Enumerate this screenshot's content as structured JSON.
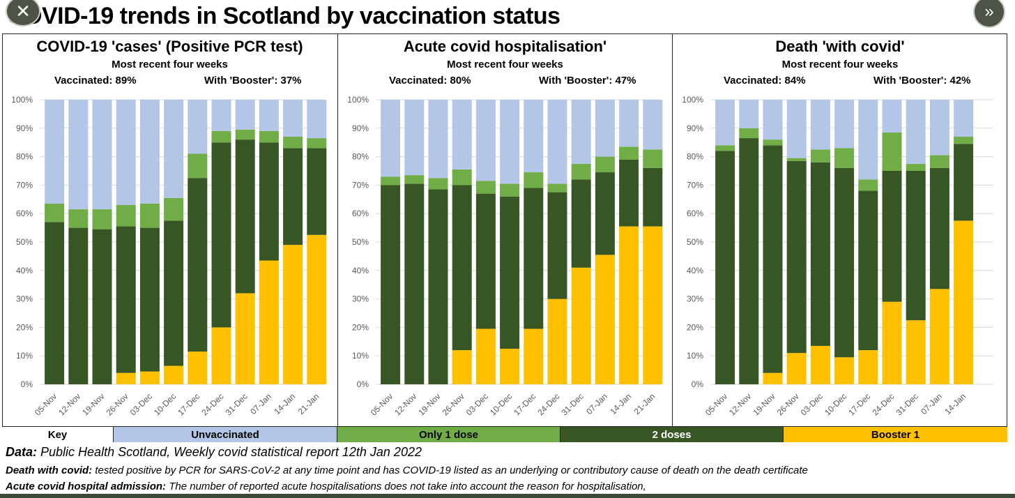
{
  "header": {
    "title": "COVID-19 trends in Scotland by vaccination status"
  },
  "controls": {
    "close_glyph": "✕",
    "next_glyph": "»"
  },
  "colors": {
    "unvaccinated": "#b4c6e7",
    "one_dose": "#70ad47",
    "two_doses": "#375623",
    "booster": "#ffc000",
    "grid": "#d9d9d9"
  },
  "key": {
    "label": "Key",
    "unvaccinated": "Unvaccinated",
    "one_dose": "Only 1 dose",
    "two_doses": "2 doses",
    "booster": "Booster 1"
  },
  "notes": {
    "data_label": "Data:",
    "data_text": "  Public Health Scotland, Weekly covid statistical report 12th Jan 2022",
    "death_label": "Death with covid:",
    "death_text": "   tested positive by PCR for SARS-CoV-2 at any time point and has COVID-19 listed as an underlying or contributory cause of death on the death certificate",
    "hosp_label": "Acute covid hospital admission:",
    "hosp_text": "  The number of reported acute hospitalisations does not take into account the reason for hospitalisation,"
  },
  "chart_data": [
    {
      "type": "bar",
      "stacked": true,
      "title": "COVID-19 'cases' (Positive PCR test)",
      "subtitle": "Most recent four weeks",
      "vaccinated_text": "Vaccinated:  89%",
      "booster_text": "With 'Booster':  37%",
      "ylim": [
        0,
        100
      ],
      "yticks": [
        "0%",
        "10%",
        "20%",
        "30%",
        "40%",
        "50%",
        "60%",
        "70%",
        "80%",
        "90%",
        "100%"
      ],
      "categories": [
        "05-Nov",
        "12-Nov",
        "19-Nov",
        "26-Nov",
        "03-Dec",
        "10-Dec",
        "17-Dec",
        "24-Dec",
        "31-Dec",
        "07-Jan",
        "14-Jan",
        "21-Jan"
      ],
      "series": [
        {
          "name": "Booster 1",
          "values": [
            0,
            0,
            0,
            4,
            4.5,
            6.5,
            11.5,
            20,
            32,
            43.5,
            49,
            52.5
          ]
        },
        {
          "name": "2 doses",
          "values": [
            57,
            55,
            54.5,
            51.5,
            50.5,
            51,
            61,
            65,
            54,
            41.5,
            34,
            30.5
          ]
        },
        {
          "name": "Only 1 dose",
          "values": [
            6.5,
            6.5,
            7,
            7.5,
            8.5,
            8,
            8.5,
            4,
            3.5,
            4,
            4,
            3.5
          ]
        },
        {
          "name": "Unvaccinated",
          "values": [
            36.5,
            38.5,
            38.5,
            37,
            36.5,
            34.5,
            19,
            11,
            10.5,
            11,
            13,
            13.5
          ]
        }
      ]
    },
    {
      "type": "bar",
      "stacked": true,
      "title": "Acute covid hospitalisation'",
      "subtitle": "Most recent four weeks",
      "vaccinated_text": "Vaccinated:  80%",
      "booster_text": "With 'Booster':  47%",
      "ylim": [
        0,
        100
      ],
      "yticks": [
        "0%",
        "10%",
        "20%",
        "30%",
        "40%",
        "50%",
        "60%",
        "70%",
        "80%",
        "90%",
        "100%"
      ],
      "categories": [
        "05-Nov",
        "12-Nov",
        "19-Nov",
        "26-Nov",
        "03-Dec",
        "10-Dec",
        "17-Dec",
        "24-Dec",
        "31-Dec",
        "07-Jan",
        "14-Jan",
        "21-Jan"
      ],
      "series": [
        {
          "name": "Booster 1",
          "values": [
            0,
            0,
            0,
            12,
            19.5,
            12.5,
            19.5,
            30,
            41,
            45.5,
            55.5,
            55.5
          ]
        },
        {
          "name": "2 doses",
          "values": [
            70,
            70.5,
            68.5,
            58,
            47.5,
            53.5,
            49.5,
            37.5,
            31,
            29,
            23.5,
            20.5
          ]
        },
        {
          "name": "Only 1 dose",
          "values": [
            3,
            3,
            4,
            5.5,
            4.5,
            4.5,
            5.5,
            3,
            5.5,
            5.5,
            4.5,
            6.5
          ]
        },
        {
          "name": "Unvaccinated",
          "values": [
            27,
            26.5,
            27.5,
            24.5,
            28.5,
            29.5,
            25.5,
            29.5,
            22.5,
            20,
            16.5,
            17.5
          ]
        }
      ]
    },
    {
      "type": "bar",
      "stacked": true,
      "title": "Death 'with covid'",
      "subtitle": "Most recent four weeks",
      "vaccinated_text": "Vaccinated:  84%",
      "booster_text": "With 'Booster':  42%",
      "ylim": [
        0,
        100
      ],
      "yticks": [
        "0%",
        "10%",
        "20%",
        "30%",
        "40%",
        "50%",
        "60%",
        "70%",
        "80%",
        "90%",
        "100%"
      ],
      "categories": [
        "05-Nov",
        "12-Nov",
        "19-Nov",
        "26-Nov",
        "03-Dec",
        "10-Dec",
        "17-Dec",
        "24-Dec",
        "31-Dec",
        "07-Jan",
        "14-Jan"
      ],
      "series": [
        {
          "name": "Booster 1",
          "values": [
            0,
            0,
            4,
            11,
            13.5,
            9.5,
            12,
            29,
            22.5,
            33.5,
            57.5
          ]
        },
        {
          "name": "2 doses",
          "values": [
            82,
            86.5,
            80,
            67.5,
            64.5,
            66.5,
            56,
            46,
            52.5,
            42.5,
            27
          ]
        },
        {
          "name": "Only 1 dose",
          "values": [
            2,
            3.5,
            2,
            1,
            4.5,
            7,
            4,
            13.5,
            2.5,
            4.5,
            2.5
          ]
        },
        {
          "name": "Unvaccinated",
          "values": [
            16,
            10,
            14,
            20.5,
            17.5,
            17,
            28,
            11.5,
            22.5,
            19.5,
            13
          ]
        }
      ]
    }
  ]
}
